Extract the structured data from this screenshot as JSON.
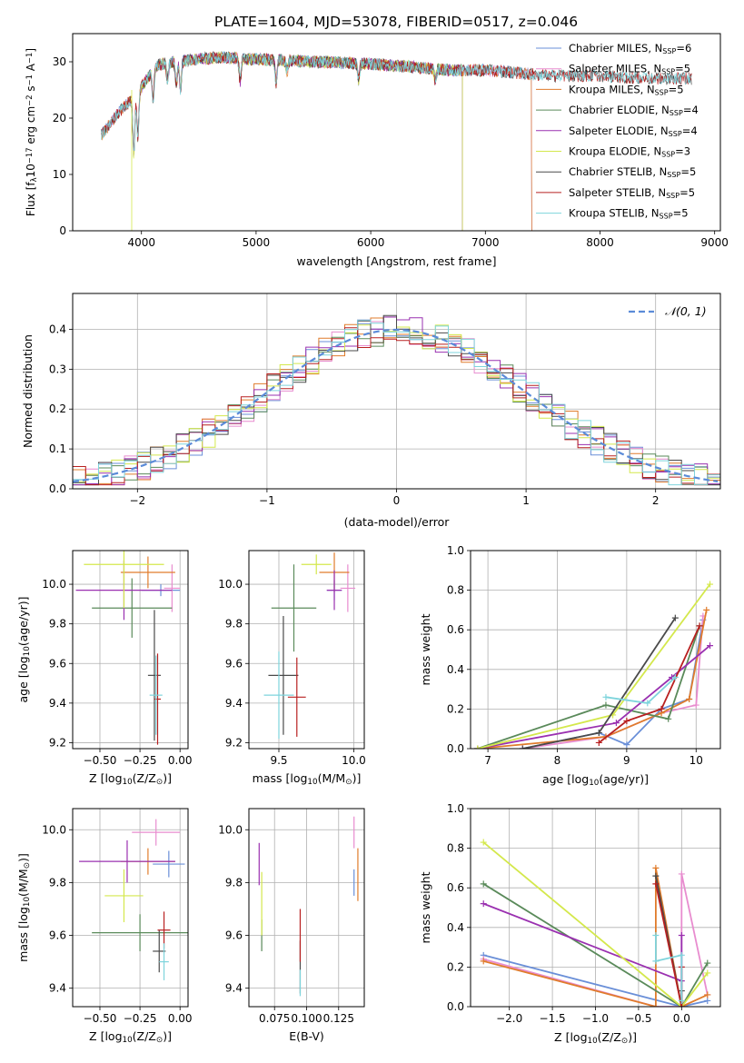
{
  "figure_title": "PLATE=1604, MJD=53078, FIBERID=0517, z=0.046",
  "colors": {
    "Chabrier MILES": "#6a8fd8",
    "Salpeter MILES": "#e88ccf",
    "Kroupa MILES": "#e07c2c",
    "Chabrier ELODIE": "#5a8a5a",
    "Salpeter ELODIE": "#9a30b0",
    "Kroupa ELODIE": "#d4e84c",
    "Chabrier STELIB": "#4a4a4a",
    "Salpeter STELIB": "#b82020",
    "Kroupa STELIB": "#7ed4dc"
  },
  "chart_data": [
    {
      "id": "spectrum",
      "type": "line",
      "title": "PLATE=1604, MJD=53078, FIBERID=0517, z=0.046",
      "xlabel": "wavelength [Angstrom, rest frame]",
      "ylabel_parts": [
        "Flux [f",
        "λ",
        "10",
        "−17",
        " erg cm",
        "−2",
        " s",
        "−1",
        " A",
        "−1",
        "]"
      ],
      "xlim": [
        3400,
        9050
      ],
      "ylim": [
        0,
        35
      ],
      "xticks": [
        4000,
        5000,
        6000,
        7000,
        8000,
        9000
      ],
      "yticks": [
        0,
        10,
        20,
        30
      ],
      "grid": false,
      "legend_position": "top-right",
      "legend": [
        {
          "label": "Chabrier MILES, N",
          "sub": "SSP",
          "value": "=6"
        },
        {
          "label": "Salpeter MILES, N",
          "sub": "SSP",
          "value": "=5"
        },
        {
          "label": "Kroupa MILES, N",
          "sub": "SSP",
          "value": "=5"
        },
        {
          "label": "Chabrier ELODIE, N",
          "sub": "SSP",
          "value": "=4"
        },
        {
          "label": "Salpeter ELODIE, N",
          "sub": "SSP",
          "value": "=4"
        },
        {
          "label": "Kroupa ELODIE, N",
          "sub": "SSP",
          "value": "=3"
        },
        {
          "label": "Chabrier STELIB, N",
          "sub": "SSP",
          "value": "=5"
        },
        {
          "label": "Salpeter STELIB, N",
          "sub": "SSP",
          "value": "=5"
        },
        {
          "label": "Kroupa STELIB, N",
          "sub": "SSP",
          "value": "=5"
        }
      ],
      "continuum": {
        "x": [
          3650,
          3800,
          3950,
          4050,
          4150,
          4300,
          4500,
          4700,
          4900,
          5200,
          5500,
          5800,
          6100,
          6400,
          6700,
          7000,
          7300,
          7600,
          8000,
          8400,
          8800
        ],
        "y": [
          17,
          21,
          24,
          27,
          29.5,
          30,
          30.5,
          30.8,
          30.5,
          30.3,
          30,
          29.8,
          29.5,
          29,
          28.5,
          28.5,
          28,
          27.5,
          27.5,
          27,
          27
        ]
      },
      "model_ranges": {
        "MILES": [
          3650,
          7400
        ],
        "ELODIE": [
          3900,
          6800
        ],
        "STELIB": [
          3650,
          8800
        ]
      }
    },
    {
      "id": "residuals",
      "type": "histogram",
      "xlabel": "(data-model)/error",
      "ylabel": "Normed distribution",
      "xlim": [
        -2.5,
        2.5
      ],
      "ylim": [
        0,
        0.49
      ],
      "xticks": [
        -2,
        -1,
        0,
        1,
        2
      ],
      "yticks": [
        0.0,
        0.1,
        0.2,
        0.3,
        0.4
      ],
      "grid": true,
      "legend_position": "top-right",
      "legend": [
        "𝒩(0, 1)"
      ],
      "bin_width": 0.1,
      "curve": "normal(0,1)"
    },
    {
      "id": "age-vs-Z",
      "type": "scatter",
      "xlabel_parts": [
        "Z [log",
        "10",
        "(Z/Z",
        "⊙",
        ")]"
      ],
      "ylabel_parts": [
        "age  [log",
        "10",
        "(age/yr)]"
      ],
      "xlim": [
        -0.67,
        0.05
      ],
      "ylim": [
        9.17,
        10.17
      ],
      "xticks": [
        -0.5,
        -0.25,
        0.0
      ],
      "yticks": [
        9.2,
        9.4,
        9.6,
        9.8,
        10.0
      ],
      "grid": true,
      "points": [
        {
          "model": "Chabrier MILES",
          "x": -0.12,
          "y": 9.97,
          "xerr": 0.12,
          "yerr": 0.03
        },
        {
          "model": "Salpeter MILES",
          "x": -0.05,
          "y": 9.98,
          "xerr": 0.05,
          "yerr": 0.12
        },
        {
          "model": "Kroupa MILES",
          "x": -0.2,
          "y": 10.06,
          "xerr": 0.17,
          "yerr": 0.08
        },
        {
          "model": "Chabrier ELODIE",
          "x": -0.3,
          "y": 9.88,
          "xerr": 0.25,
          "yerr": 0.15
        },
        {
          "model": "Salpeter ELODIE",
          "x": -0.35,
          "y": 9.97,
          "xerr": 0.3,
          "yerr": 0.15
        },
        {
          "model": "Kroupa ELODIE",
          "x": -0.35,
          "y": 10.1,
          "xerr": 0.25,
          "yerr": 0.22
        },
        {
          "model": "Chabrier STELIB",
          "x": -0.16,
          "y": 9.54,
          "xerr": 0.04,
          "yerr": 0.33
        },
        {
          "model": "Salpeter STELIB",
          "x": -0.14,
          "y": 9.42,
          "xerr": 0.02,
          "yerr": 0.23
        },
        {
          "model": "Kroupa STELIB",
          "x": -0.15,
          "y": 9.44,
          "xerr": 0.04,
          "yerr": 0.2
        }
      ]
    },
    {
      "id": "age-vs-mass",
      "type": "scatter",
      "xlabel_parts": [
        "mass [log",
        "10",
        "(M/M",
        "⊙",
        ")]"
      ],
      "xlim": [
        9.3,
        10.07
      ],
      "ylim": [
        9.17,
        10.17
      ],
      "xticks": [
        9.5,
        10.0
      ],
      "yticks": [
        9.2,
        9.4,
        9.6,
        9.8,
        10.0
      ],
      "grid": true,
      "points": [
        {
          "model": "Chabrier MILES",
          "x": 9.87,
          "y": 9.97,
          "xerr": 0.05,
          "yerr": 0.05
        },
        {
          "model": "Salpeter MILES",
          "x": 9.96,
          "y": 9.98,
          "xerr": 0.05,
          "yerr": 0.12
        },
        {
          "model": "Kroupa MILES",
          "x": 9.87,
          "y": 10.06,
          "xerr": 0.1,
          "yerr": 0.1
        },
        {
          "model": "Chabrier ELODIE",
          "x": 9.6,
          "y": 9.88,
          "xerr": 0.15,
          "yerr": 0.22
        },
        {
          "model": "Salpeter ELODIE",
          "x": 9.87,
          "y": 9.97,
          "xerr": 0.05,
          "yerr": 0.1
        },
        {
          "model": "Kroupa ELODIE",
          "x": 9.75,
          "y": 10.1,
          "xerr": 0.1,
          "yerr": 0.05
        },
        {
          "model": "Chabrier STELIB",
          "x": 9.53,
          "y": 9.54,
          "xerr": 0.1,
          "yerr": 0.3
        },
        {
          "model": "Salpeter STELIB",
          "x": 9.62,
          "y": 9.43,
          "xerr": 0.06,
          "yerr": 0.2
        },
        {
          "model": "Kroupa STELIB",
          "x": 9.5,
          "y": 9.44,
          "xerr": 0.1,
          "yerr": 0.22
        }
      ]
    },
    {
      "id": "mass-weight-vs-age",
      "type": "line",
      "xlabel_parts": [
        "age  [log",
        "10",
        "(age/yr)]"
      ],
      "ylabel": "mass weight",
      "xlim": [
        6.75,
        10.35
      ],
      "ylim": [
        0,
        1
      ],
      "xticks": [
        7,
        8,
        9,
        10
      ],
      "yticks": [
        0.0,
        0.2,
        0.4,
        0.6,
        0.8,
        1.0
      ],
      "grid": true,
      "series": [
        {
          "model": "Chabrier MILES",
          "x": [
            7.5,
            8.6,
            9.0,
            9.5,
            9.9,
            10.1
          ],
          "y": [
            0.0,
            0.08,
            0.02,
            0.2,
            0.25,
            0.65
          ]
        },
        {
          "model": "Salpeter MILES",
          "x": [
            7.5,
            8.7,
            9.5,
            10.0,
            10.1
          ],
          "y": [
            0.0,
            0.06,
            0.18,
            0.22,
            0.67
          ]
        },
        {
          "model": "Kroupa MILES",
          "x": [
            6.85,
            8.7,
            9.5,
            9.9,
            10.15
          ],
          "y": [
            0.0,
            0.06,
            0.18,
            0.25,
            0.7
          ]
        },
        {
          "model": "Chabrier ELODIE",
          "x": [
            6.85,
            8.7,
            9.6,
            10.05
          ],
          "y": [
            0.0,
            0.22,
            0.15,
            0.62
          ]
        },
        {
          "model": "Salpeter ELODIE",
          "x": [
            6.85,
            8.85,
            9.65,
            10.2
          ],
          "y": [
            0.0,
            0.13,
            0.36,
            0.52
          ]
        },
        {
          "model": "Kroupa ELODIE",
          "x": [
            6.85,
            8.8,
            10.2
          ],
          "y": [
            0.0,
            0.17,
            0.83
          ]
        },
        {
          "model": "Chabrier STELIB",
          "x": [
            7.5,
            8.6,
            9.7
          ],
          "y": [
            0.0,
            0.08,
            0.66
          ]
        },
        {
          "model": "Salpeter STELIB",
          "x": [
            8.6,
            9.0,
            9.5,
            10.05
          ],
          "y": [
            0.03,
            0.14,
            0.2,
            0.62
          ]
        },
        {
          "model": "Kroupa STELIB",
          "x": [
            8.7,
            9.3,
            9.7
          ],
          "y": [
            0.26,
            0.23,
            0.36
          ]
        }
      ]
    },
    {
      "id": "mass-vs-Z",
      "type": "scatter",
      "xlabel_parts": [
        "Z [log",
        "10",
        "(Z/Z",
        "⊙",
        ")]"
      ],
      "ylabel_parts": [
        "mass [log",
        "10",
        "(M/M",
        "⊙",
        ")]"
      ],
      "xlim": [
        -0.67,
        0.05
      ],
      "ylim": [
        9.33,
        10.08
      ],
      "xticks": [
        -0.5,
        -0.25,
        0.0
      ],
      "yticks": [
        9.4,
        9.6,
        9.8,
        10.0
      ],
      "grid": true,
      "points": [
        {
          "model": "Chabrier MILES",
          "x": -0.07,
          "y": 9.87,
          "xerr": 0.1,
          "yerr": 0.05
        },
        {
          "model": "Salpeter MILES",
          "x": -0.15,
          "y": 9.99,
          "xerr": 0.15,
          "yerr": 0.05
        },
        {
          "model": "Kroupa MILES",
          "x": -0.2,
          "y": 9.88,
          "xerr": 0.17,
          "yerr": 0.05
        },
        {
          "model": "Chabrier ELODIE",
          "x": -0.25,
          "y": 9.61,
          "xerr": 0.3,
          "yerr": 0.07
        },
        {
          "model": "Salpeter ELODIE",
          "x": -0.33,
          "y": 9.88,
          "xerr": 0.3,
          "yerr": 0.08
        },
        {
          "model": "Kroupa ELODIE",
          "x": -0.35,
          "y": 9.75,
          "xerr": 0.12,
          "yerr": 0.1
        },
        {
          "model": "Chabrier STELIB",
          "x": -0.13,
          "y": 9.54,
          "xerr": 0.04,
          "yerr": 0.08
        },
        {
          "model": "Salpeter STELIB",
          "x": -0.1,
          "y": 9.62,
          "xerr": 0.04,
          "yerr": 0.07
        },
        {
          "model": "Kroupa STELIB",
          "x": -0.1,
          "y": 9.5,
          "xerr": 0.03,
          "yerr": 0.07
        }
      ]
    },
    {
      "id": "mass-vs-ebv",
      "type": "scatter",
      "xlabel": "E(B-V)",
      "xlim": [
        0.055,
        0.145
      ],
      "ylim": [
        9.33,
        10.08
      ],
      "xticks": [
        0.075,
        0.1,
        0.125
      ],
      "xtick_labels": [
        "0.075",
        "0.100",
        "0.125"
      ],
      "yticks": [
        9.4,
        9.6,
        9.8,
        10.0
      ],
      "grid": true,
      "points": [
        {
          "model": "Chabrier MILES",
          "x": 0.137,
          "y": 9.8,
          "xerr": 0.0,
          "yerr": 0.05
        },
        {
          "model": "Salpeter MILES",
          "x": 0.137,
          "y": 9.99,
          "xerr": 0.0,
          "yerr": 0.06
        },
        {
          "model": "Kroupa MILES",
          "x": 0.14,
          "y": 9.83,
          "xerr": 0.0,
          "yerr": 0.1
        },
        {
          "model": "Chabrier ELODIE",
          "x": 0.065,
          "y": 9.6,
          "xerr": 0.0,
          "yerr": 0.06
        },
        {
          "model": "Salpeter ELODIE",
          "x": 0.063,
          "y": 9.87,
          "xerr": 0.0,
          "yerr": 0.08
        },
        {
          "model": "Kroupa ELODIE",
          "x": 0.065,
          "y": 9.72,
          "xerr": 0.0,
          "yerr": 0.12
        },
        {
          "model": "Chabrier STELIB",
          "x": 0.095,
          "y": 9.48,
          "xerr": 0.0,
          "yerr": 0.1
        },
        {
          "model": "Salpeter STELIB",
          "x": 0.095,
          "y": 9.6,
          "xerr": 0.0,
          "yerr": 0.1
        },
        {
          "model": "Kroupa STELIB",
          "x": 0.095,
          "y": 9.42,
          "xerr": 0.0,
          "yerr": 0.05
        }
      ]
    },
    {
      "id": "mass-weight-vs-Z",
      "type": "line",
      "xlabel_parts": [
        "Z [log",
        "10",
        "(Z/Z",
        "⊙",
        ")]"
      ],
      "ylabel": "mass weight",
      "xlim": [
        -2.45,
        0.45
      ],
      "ylim": [
        0,
        1
      ],
      "xticks": [
        -2.0,
        -1.5,
        -1.0,
        -0.5,
        0.0
      ],
      "yticks": [
        0.0,
        0.2,
        0.4,
        0.6,
        0.8,
        1.0
      ],
      "grid": true,
      "series": [
        {
          "model": "Chabrier MILES",
          "x": [
            -2.3,
            0.0,
            0.3
          ],
          "y": [
            0.26,
            0.0,
            0.03
          ]
        },
        {
          "model": "Salpeter MILES",
          "x": [
            -2.3,
            -0.3,
            0.0,
            0.0,
            0.3
          ],
          "y": [
            0.24,
            0.0,
            0.0,
            0.67,
            0.06
          ]
        },
        {
          "model": "Kroupa MILES",
          "x": [
            -2.3,
            -0.3,
            -0.3,
            0.0,
            0.3
          ],
          "y": [
            0.23,
            0.0,
            0.7,
            0.0,
            0.06
          ]
        },
        {
          "model": "Chabrier ELODIE",
          "x": [
            -2.3,
            0.0,
            0.3
          ],
          "y": [
            0.62,
            0.0,
            0.22
          ]
        },
        {
          "model": "Salpeter ELODIE",
          "x": [
            -2.3,
            0.0,
            0.0,
            0.0
          ],
          "y": [
            0.52,
            0.13,
            0.36,
            0.0
          ]
        },
        {
          "model": "Kroupa ELODIE",
          "x": [
            -2.3,
            0.0,
            0.3
          ],
          "y": [
            0.83,
            0.0,
            0.17
          ]
        },
        {
          "model": "Chabrier STELIB",
          "x": [
            -0.3,
            0.0,
            0.0
          ],
          "y": [
            0.66,
            0.0,
            0.08
          ]
        },
        {
          "model": "Salpeter STELIB",
          "x": [
            -0.3,
            0.0,
            0.0
          ],
          "y": [
            0.62,
            0.0,
            0.2
          ]
        },
        {
          "model": "Kroupa STELIB",
          "x": [
            -0.3,
            -0.3,
            0.0,
            0.0
          ],
          "y": [
            0.36,
            0.23,
            0.26,
            0.03
          ]
        }
      ]
    }
  ]
}
